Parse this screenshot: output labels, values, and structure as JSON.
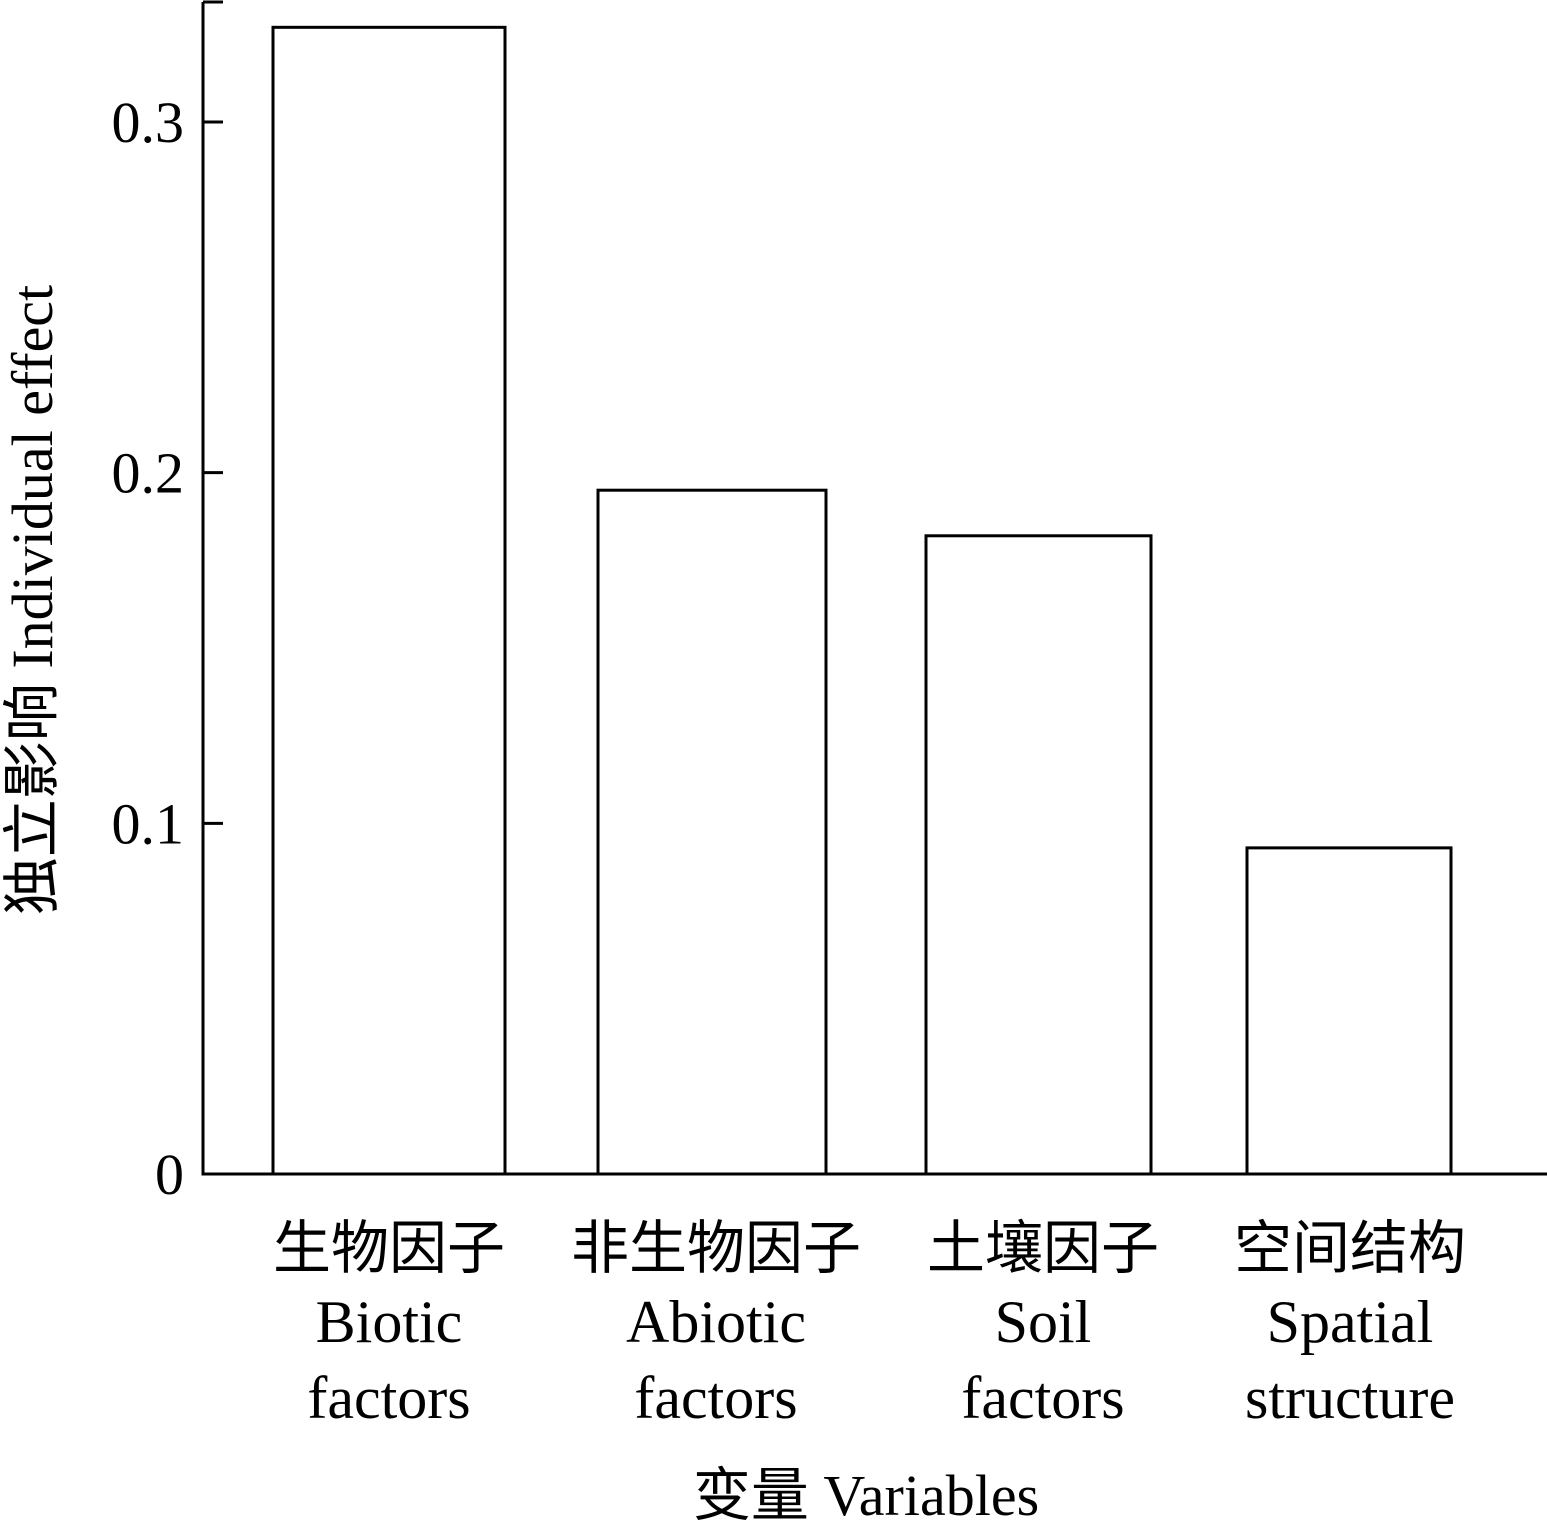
{
  "chart_data": {
    "type": "bar",
    "categories": [
      {
        "cn": "生物因子",
        "en_lines": [
          "Biotic",
          "factors"
        ]
      },
      {
        "cn": "非生物因子",
        "en_lines": [
          "Abiotic",
          "factors"
        ]
      },
      {
        "cn": "土壤因子",
        "en_lines": [
          "Soil",
          "factors"
        ]
      },
      {
        "cn": "空间结构",
        "en_lines": [
          "Spatial",
          "structure"
        ]
      }
    ],
    "values": [
      0.327,
      0.195,
      0.182,
      0.093
    ],
    "ylim": [
      0,
      0.3275
    ],
    "yticks": [
      0,
      0.1,
      0.2,
      0.3
    ],
    "ytick_labels": [
      "0",
      "0.1",
      "0.2",
      "0.3"
    ],
    "xlabel": "变量 Variables",
    "ylabel": "独立影响 Individual effect",
    "grid": false,
    "legend": "none",
    "bar_fill": "#ffffff",
    "bar_stroke": "#000000"
  }
}
